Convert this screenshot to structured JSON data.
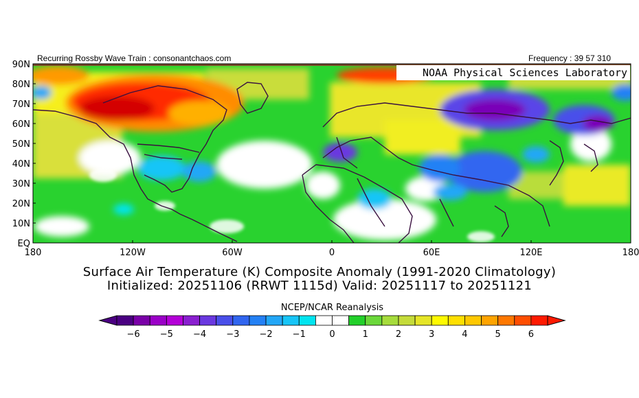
{
  "header": {
    "left": "Recurring Rossby Wave Train : consonantchaos.com",
    "right": "Frequency : 39 57 310",
    "lab": "NOAA Physical Sciences Laboratory"
  },
  "axes": {
    "lat_labels": [
      "90N",
      "80N",
      "70N",
      "60N",
      "50N",
      "40N",
      "30N",
      "20N",
      "10N",
      "EQ"
    ],
    "lon_labels": [
      "180",
      "120W",
      "60W",
      "0",
      "60E",
      "120E",
      "180"
    ]
  },
  "title": {
    "line1": "Surface Air Temperature (K) Composite Anomaly (1991-2020 Climatology)",
    "line2": "Initialized: 20251106 (RRWT 1115d) Valid: 20251117 to 20251121"
  },
  "colorbar": {
    "label": "NCEP/NCAR Reanalysis",
    "ticks": [
      "-6",
      "-5",
      "-4",
      "-3",
      "-2",
      "-1",
      "0",
      "1",
      "2",
      "3",
      "4",
      "5",
      "6"
    ],
    "colors": [
      "#4b0082",
      "#7a00a8",
      "#9b00c8",
      "#b400d8",
      "#8a1fd0",
      "#6a38e0",
      "#4a4fea",
      "#3166f0",
      "#2481f5",
      "#23a7f7",
      "#17c5f7",
      "#00e5f0",
      "#ffffff",
      "#ffffff",
      "#22d02a",
      "#6bd83a",
      "#a6dc3c",
      "#c5dc3a",
      "#e6e627",
      "#fffa00",
      "#ffe000",
      "#ffc800",
      "#ffa400",
      "#ff7800",
      "#ff4e00",
      "#ff1a00"
    ]
  }
}
